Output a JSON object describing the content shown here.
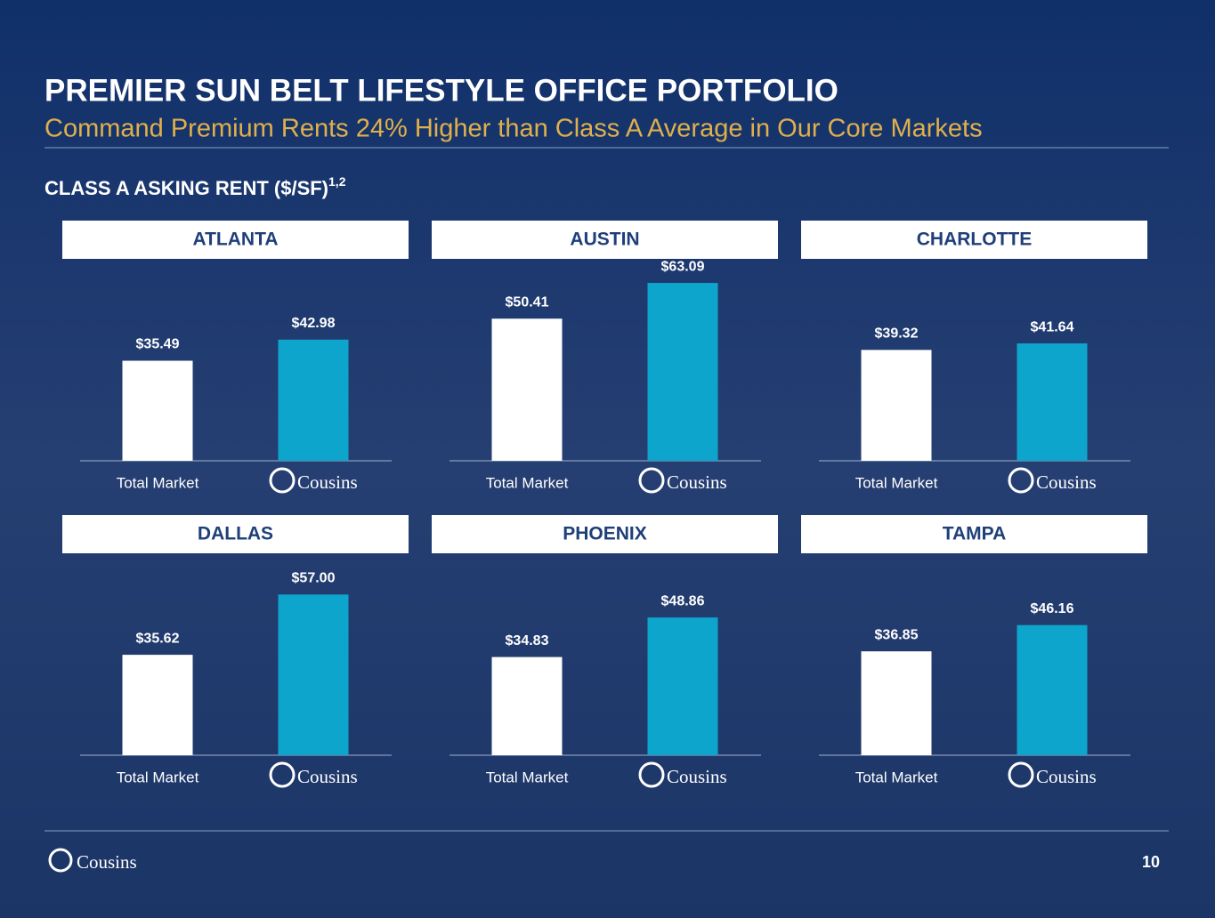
{
  "header": {
    "title": "PREMIER SUN BELT LIFESTYLE OFFICE PORTFOLIO",
    "subtitle": "Command Premium Rents 24% Higher than Class A Average in Our Core Markets",
    "section": "CLASS A ASKING RENT ($/SF)",
    "section_note": "1,2"
  },
  "chart_data": [
    {
      "type": "bar",
      "title": "ATLANTA",
      "categories": [
        "Total Market",
        "Cousins"
      ],
      "values": [
        35.49,
        42.98
      ],
      "value_labels": [
        "$35.49",
        "$42.98"
      ],
      "colors": [
        "#ffffff",
        "#0ea5cc"
      ],
      "ylim": [
        0,
        65
      ]
    },
    {
      "type": "bar",
      "title": "AUSTIN",
      "categories": [
        "Total Market",
        "Cousins"
      ],
      "values": [
        50.41,
        63.09
      ],
      "value_labels": [
        "$50.41",
        "$63.09"
      ],
      "colors": [
        "#ffffff",
        "#0ea5cc"
      ],
      "ylim": [
        0,
        65
      ]
    },
    {
      "type": "bar",
      "title": "CHARLOTTE",
      "categories": [
        "Total Market",
        "Cousins"
      ],
      "values": [
        39.32,
        41.64
      ],
      "value_labels": [
        "$39.32",
        "$41.64"
      ],
      "colors": [
        "#ffffff",
        "#0ea5cc"
      ],
      "ylim": [
        0,
        65
      ]
    },
    {
      "type": "bar",
      "title": "DALLAS",
      "categories": [
        "Total Market",
        "Cousins"
      ],
      "values": [
        35.62,
        57.0
      ],
      "value_labels": [
        "$35.62",
        "$57.00"
      ],
      "colors": [
        "#ffffff",
        "#0ea5cc"
      ],
      "ylim": [
        0,
        65
      ]
    },
    {
      "type": "bar",
      "title": "PHOENIX",
      "categories": [
        "Total Market",
        "Cousins"
      ],
      "values": [
        34.83,
        48.86
      ],
      "value_labels": [
        "$34.83",
        "$48.86"
      ],
      "colors": [
        "#ffffff",
        "#0ea5cc"
      ],
      "ylim": [
        0,
        65
      ]
    },
    {
      "type": "bar",
      "title": "TAMPA",
      "categories": [
        "Total Market",
        "Cousins"
      ],
      "values": [
        36.85,
        46.16
      ],
      "value_labels": [
        "$36.85",
        "$46.16"
      ],
      "colors": [
        "#ffffff",
        "#0ea5cc"
      ],
      "ylim": [
        0,
        65
      ]
    }
  ],
  "footer": {
    "logo": "Cousins",
    "page": "10"
  }
}
